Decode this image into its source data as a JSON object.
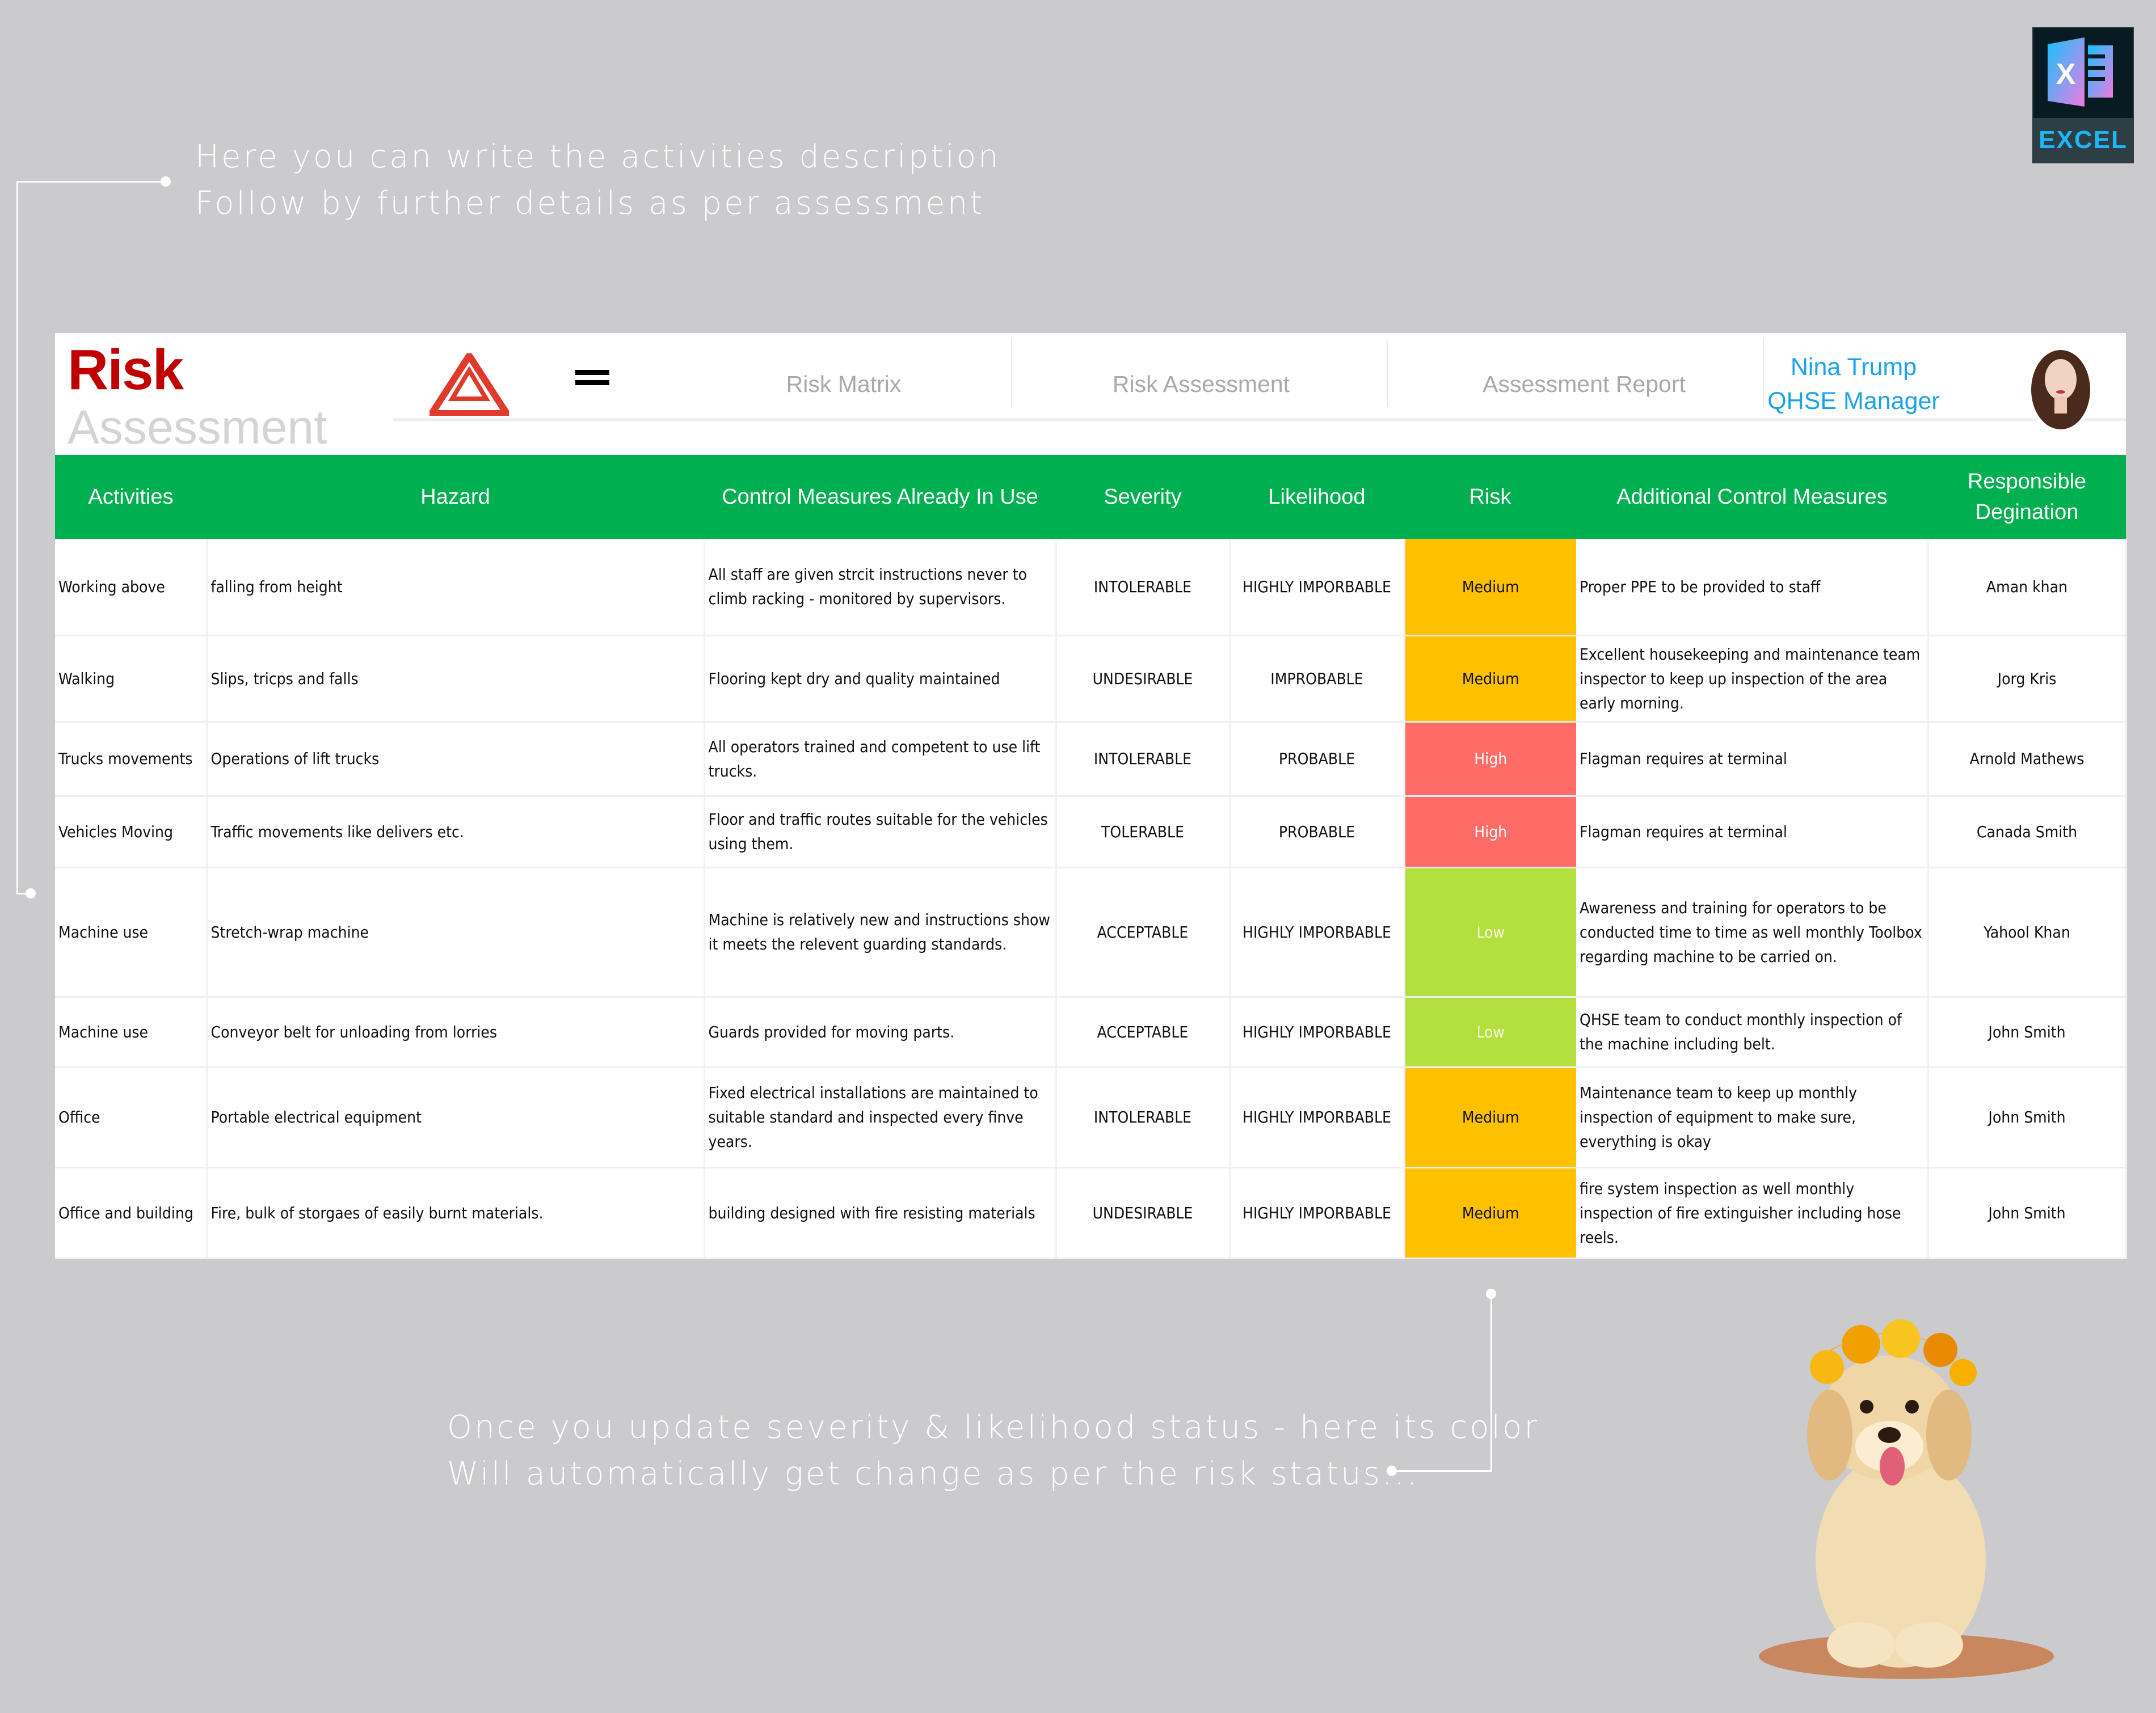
{
  "annotations": {
    "top": [
      "Here you can write the activities description",
      "Follow by further details as per assessment"
    ],
    "bottom": [
      "Once you update severity & likelihood status - here its color",
      "Will automatically get change as per the risk status..."
    ]
  },
  "badge": {
    "label": "EXCEL",
    "icon": "excel-icon"
  },
  "header": {
    "title_main": "Risk",
    "title_sub": "Assessment",
    "menu_icon": "hamburger-menu-icon",
    "nav": [
      "Risk Matrix",
      "Risk Assessment",
      "Assessment Report"
    ],
    "user": {
      "name": "Nina Trump",
      "role": "QHSE Manager"
    }
  },
  "colors": {
    "header_green": "#00b050",
    "title_red": "#c00000",
    "medium": "#ffc000",
    "high": "#ff6b66",
    "low": "#b4e03f",
    "user_blue": "#1aa3e8"
  },
  "table": {
    "columns": [
      "Activities",
      "Hazard",
      "Control Measures Already In Use",
      "Severity",
      "Likelihood",
      "Risk",
      "Additional Control Measures",
      "Responsible Degination"
    ],
    "rows": [
      {
        "activity": "Working above",
        "hazard": "falling from height",
        "control": "All staff are given strcit instructions never to climb racking - monitored by supervisors.",
        "severity": "INTOLERABLE",
        "likelihood": "HIGHLY IMPORBABLE",
        "risk": "Medium",
        "additional": "Proper PPE to be provided to staff",
        "responsible": "Aman khan"
      },
      {
        "activity": "Walking",
        "hazard": "Slips, tricps and falls",
        "control": "Flooring kept dry and quality maintained",
        "severity": "UNDESIRABLE",
        "likelihood": "IMPROBABLE",
        "risk": "Medium",
        "additional": "Excellent housekeeping and maintenance team inspector to keep up inspection of the area early morning.",
        "responsible": "Jorg Kris"
      },
      {
        "activity": "Trucks movements",
        "hazard": "Operations of lift trucks",
        "control": "All operators trained and competent to use lift trucks.",
        "severity": "INTOLERABLE",
        "likelihood": "PROBABLE",
        "risk": "High",
        "additional": "Flagman requires at terminal",
        "responsible": "Arnold Mathews"
      },
      {
        "activity": "Vehicles Moving",
        "hazard": "Traffic movements like delivers etc.",
        "control": "Floor and traffic routes suitable for the vehicles using them.",
        "severity": "TOLERABLE",
        "likelihood": "PROBABLE",
        "risk": "High",
        "additional": "Flagman requires at terminal",
        "responsible": "Canada Smith"
      },
      {
        "activity": "Machine use",
        "hazard": "Stretch-wrap machine",
        "control": "Machine is relatively new and instructions show it meets the relevent guarding standards.",
        "severity": "ACCEPTABLE",
        "likelihood": "HIGHLY IMPORBABLE",
        "risk": "Low",
        "additional": "Awareness and training for operators to be conducted time to time as well monthly Toolbox regarding machine to be carried on.",
        "responsible": "Yahool Khan"
      },
      {
        "activity": "Machine use",
        "hazard": "Conveyor belt for unloading from lorries",
        "control": "Guards provided for moving parts.",
        "severity": "ACCEPTABLE",
        "likelihood": "HIGHLY IMPORBABLE",
        "risk": "Low",
        "additional": "QHSE team to conduct monthly inspection of the machine including belt.",
        "responsible": "John Smith"
      },
      {
        "activity": "Office",
        "hazard": "Portable electrical equipment",
        "control": "Fixed electrical installations are maintained to suitable standard and inspected every finve years.",
        "severity": "INTOLERABLE",
        "likelihood": "HIGHLY IMPORBABLE",
        "risk": "Medium",
        "additional": "Maintenance team to keep up monthly inspection of equipment to make sure, everything is okay",
        "responsible": "John Smith"
      },
      {
        "activity": "Office and building",
        "hazard": "Fire, bulk of storgaes of easily burnt materials.",
        "control": "building designed with fire resisting materials",
        "severity": "UNDESIRABLE",
        "likelihood": "HIGHLY IMPORBABLE",
        "risk": "Medium",
        "additional": "fire system inspection as well monthly inspection of fire extinguisher including hose reels.",
        "responsible": "John Smith"
      }
    ]
  }
}
